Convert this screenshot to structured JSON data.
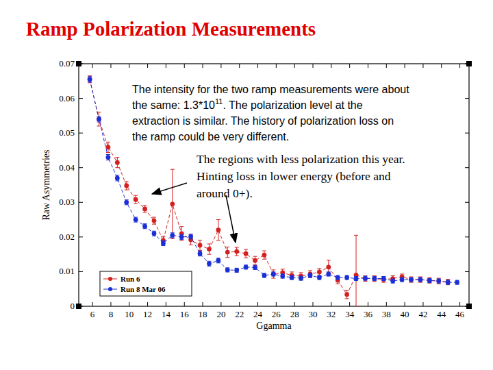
{
  "chart_data": {
    "type": "line",
    "title": "Ramp Polarization Measurements",
    "x_label": "Ggamma",
    "y_label": "Raw Asymmetries",
    "x": [
      5.7,
      6.7,
      7.7,
      8.7,
      9.7,
      10.7,
      11.7,
      12.7,
      13.7,
      14.7,
      15.7,
      16.7,
      17.7,
      18.7,
      19.7,
      20.7,
      21.7,
      22.7,
      23.7,
      24.7,
      25.7,
      26.7,
      27.7,
      28.7,
      29.7,
      30.7,
      31.7,
      32.7,
      33.7,
      34.7,
      35.7,
      36.7,
      37.7,
      38.7,
      39.7,
      40.7,
      41.7,
      42.7,
      43.7,
      44.7,
      45.7
    ],
    "series": [
      {
        "name": "Run 6",
        "color": "#d42020",
        "marker": "circle",
        "line_style": "dashed",
        "values": [
          0.0655,
          0.054,
          0.0459,
          0.0415,
          0.0348,
          0.0308,
          0.0281,
          0.0247,
          0.019,
          0.0295,
          0.021,
          0.0192,
          0.0176,
          0.0165,
          0.022,
          0.0156,
          0.0158,
          0.0152,
          0.0132,
          0.0148,
          0.0093,
          0.0097,
          0.0089,
          0.0087,
          0.0093,
          0.0099,
          0.0113,
          0.0075,
          0.0034,
          0.009,
          0.008,
          0.008,
          0.0077,
          0.008,
          0.0085,
          0.0077,
          0.0077,
          0.0075,
          0.0073,
          0.007,
          null
        ],
        "errors": [
          0.001,
          0.002,
          0.0015,
          0.0015,
          0.0012,
          0.0012,
          0.001,
          0.001,
          0.0012,
          0.01,
          0.002,
          0.0015,
          0.0015,
          0.0015,
          0.003,
          0.0015,
          0.0012,
          0.0012,
          0.0012,
          0.0012,
          0.0012,
          0.001,
          0.001,
          0.001,
          0.001,
          0.001,
          0.002,
          0.001,
          0.0012,
          0.0115,
          0.0008,
          0.0008,
          0.0008,
          0.0008,
          0.0008,
          0.0008,
          0.0008,
          0.0008,
          0.0008,
          0.0008,
          null
        ]
      },
      {
        "name": "Run 8 Mar 06",
        "color": "#1c2fd6",
        "marker": "circle",
        "line_style": "dashed",
        "values": [
          0.0655,
          0.054,
          0.043,
          0.037,
          0.03,
          0.025,
          0.0231,
          0.021,
          0.0182,
          0.0205,
          0.02,
          0.0201,
          0.0152,
          0.0123,
          0.0132,
          0.0105,
          0.0104,
          0.0113,
          0.0112,
          0.0089,
          0.0093,
          0.0087,
          0.0083,
          0.0081,
          0.0089,
          0.0083,
          0.0093,
          0.0083,
          0.0083,
          0.008,
          0.0081,
          0.008,
          0.008,
          0.0073,
          0.0077,
          0.0077,
          0.0077,
          0.0074,
          0.0073,
          0.0069,
          0.0069
        ],
        "errors": [
          0.0008,
          0.0008,
          0.0008,
          0.0008,
          0.0007,
          0.0007,
          0.0007,
          0.0007,
          0.0007,
          0.0007,
          0.0007,
          0.0007,
          0.0007,
          0.0007,
          0.0007,
          0.0006,
          0.0006,
          0.0006,
          0.0006,
          0.0006,
          0.0006,
          0.0006,
          0.0006,
          0.0006,
          0.0006,
          0.0006,
          0.0006,
          0.0006,
          0.0006,
          0.0006,
          0.0006,
          0.0006,
          0.0006,
          0.0006,
          0.0006,
          0.0006,
          0.0006,
          0.0006,
          0.0006,
          0.0006,
          0.0006
        ]
      }
    ],
    "xlim": [
      4.5,
      47
    ],
    "xticks": [
      6,
      8,
      10,
      12,
      14,
      16,
      18,
      20,
      22,
      24,
      26,
      28,
      30,
      32,
      34,
      36,
      38,
      40,
      42,
      44,
      46
    ],
    "ylim": [
      0,
      0.07
    ],
    "yticks": [
      0,
      0.01,
      0.02,
      0.03,
      0.04,
      0.05,
      0.06,
      0.07
    ],
    "grid": false,
    "legend": "lower left",
    "annotations": [
      {
        "text": [
          "The intensity for the two ramp measurements were about",
          "the same: 1.3*10",
          "11",
          ".  The polarization level at the",
          "extraction is similar. The history of polarization loss on",
          "the ramp could be very different."
        ]
      },
      {
        "text": [
          "The regions with less polarization this year.",
          "Hinting loss in lower energy (before and",
          "around 0+)."
        ]
      }
    ]
  }
}
